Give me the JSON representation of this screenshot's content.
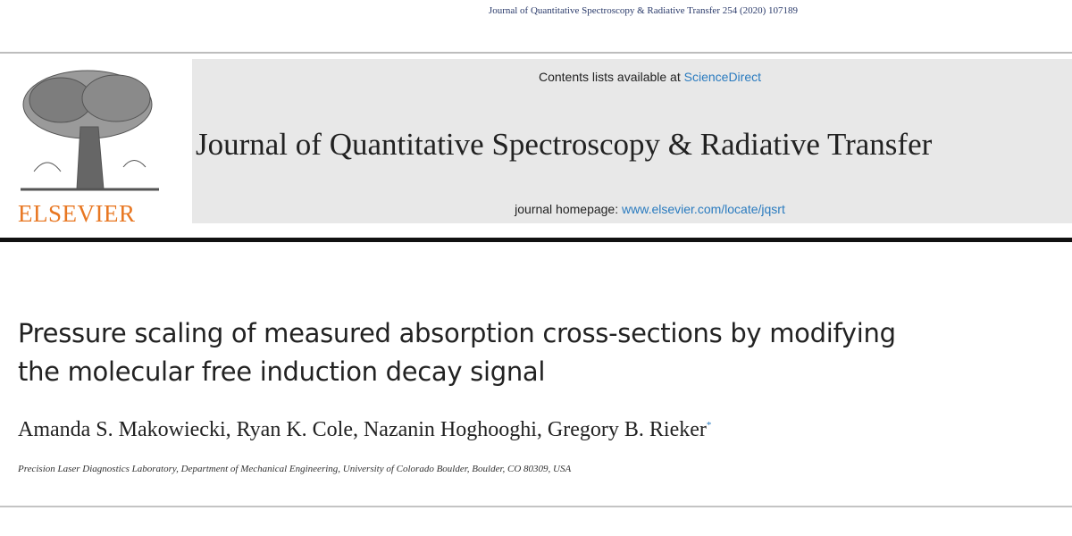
{
  "running_header": "Journal of Quantitative Spectroscopy & Radiative Transfer 254 (2020) 107189",
  "banner": {
    "contents_prefix": "Contents lists available at",
    "contents_link": "ScienceDirect",
    "journal_title": "Journal of Quantitative Spectroscopy & Radiative Transfer",
    "publisher": "ELSEVIER",
    "homepage_prefix": "journal homepage:",
    "homepage_link": "www.elsevier.com/locate/jqsrt"
  },
  "article": {
    "title_lines": [
      "Pressure scaling of measured absorption cross-sections by modifying",
      "the molecular free induction decay signal"
    ],
    "authors": "Amanda S. Makowiecki, Ryan K. Cole, Nazanin Hoghooghi, Gregory B. Rieker",
    "corresponding_mark": "*",
    "affiliation": "Precision Laser Diagnostics Laboratory, Department of Mechanical Engineering, University of Colorado Boulder, Boulder, CO 80309, USA"
  }
}
